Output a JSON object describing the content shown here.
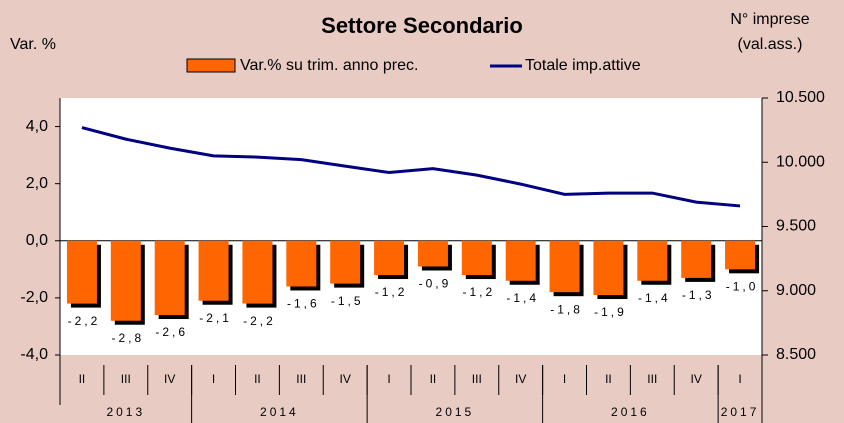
{
  "chart_data": {
    "type": "bar",
    "title": "Settore Secondario",
    "y_label": "Var. %",
    "y2_label": [
      "N° imprese",
      "(val.ass.)"
    ],
    "categories": [
      "II",
      "III",
      "IV",
      "I",
      "II",
      "III",
      "IV",
      "I",
      "II",
      "III",
      "IV",
      "I",
      "II",
      "III",
      "IV",
      "I"
    ],
    "year_groups": [
      {
        "label": "2013",
        "count": 3
      },
      {
        "label": "2014",
        "count": 4
      },
      {
        "label": "2015",
        "count": 4
      },
      {
        "label": "2016",
        "count": 4
      },
      {
        "label": "2017",
        "count": 1
      }
    ],
    "series": [
      {
        "name": "Var.% su trim. anno prec.",
        "type": "bar",
        "color": "#ff6600",
        "values": [
          -2.2,
          -2.8,
          -2.6,
          -2.1,
          -2.2,
          -1.6,
          -1.5,
          -1.2,
          -0.9,
          -1.2,
          -1.4,
          -1.8,
          -1.9,
          -1.4,
          -1.3,
          -1.0
        ],
        "value_labels": [
          "-2,2",
          "-2,8",
          "-2,6",
          "-2,1",
          "-2,2",
          "-1,6",
          "-1,5",
          "-1,2",
          "-0,9",
          "-1,2",
          "-1,4",
          "-1,8",
          "-1,9",
          "-1,4",
          "-1,3",
          "-1,0"
        ]
      },
      {
        "name": "Totale imp.attive",
        "type": "line",
        "color": "#000080",
        "axis": "y2",
        "values": [
          10270,
          10180,
          10110,
          10050,
          10040,
          10020,
          9970,
          9920,
          9950,
          9900,
          9830,
          9750,
          9760,
          9760,
          9690,
          9660
        ]
      }
    ],
    "ylim": [
      -4,
      5
    ],
    "yticks": [
      {
        "value": -4,
        "label": "-4,0"
      },
      {
        "value": -2,
        "label": "-2,0"
      },
      {
        "value": 0,
        "label": "0,0"
      },
      {
        "value": 2,
        "label": "2,0"
      },
      {
        "value": 4,
        "label": "4,0"
      }
    ],
    "y2lim": [
      8500,
      10500
    ],
    "y2ticks": [
      {
        "value": 8500,
        "label": "8.500"
      },
      {
        "value": 9000,
        "label": "9.000"
      },
      {
        "value": 9500,
        "label": "9.500"
      },
      {
        "value": 10000,
        "label": "10.000"
      },
      {
        "value": 10500,
        "label": "10.500"
      }
    ],
    "background": "#e8cbc3"
  }
}
